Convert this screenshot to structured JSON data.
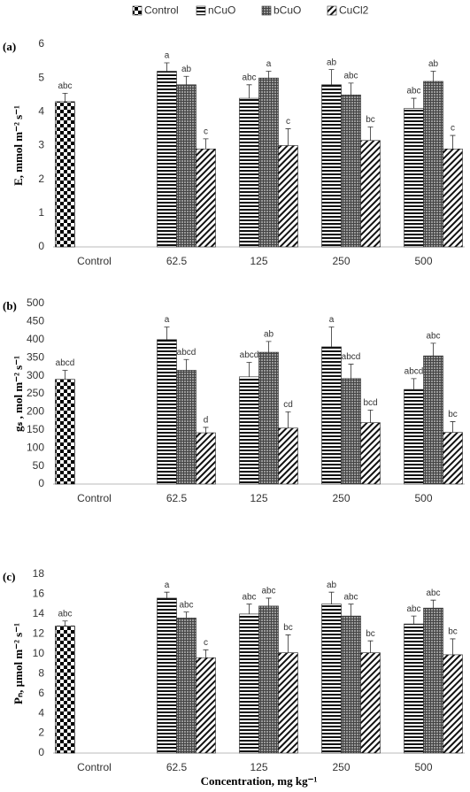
{
  "chart_data": [
    {
      "type": "bar",
      "panel": "(a)",
      "ylabel": "E, mmol m⁻² s⁻¹",
      "categories": [
        "Control",
        "62.5",
        "125",
        "250",
        "500"
      ],
      "ylim": [
        0,
        6
      ],
      "yticks": [
        0,
        1,
        2,
        3,
        4,
        5,
        6
      ],
      "series": [
        {
          "name": "Control",
          "pattern": "checker",
          "values": [
            4.3,
            null,
            null,
            null,
            null
          ],
          "errors": [
            0.25,
            null,
            null,
            null,
            null
          ],
          "labels": [
            "abc",
            null,
            null,
            null,
            null
          ]
        },
        {
          "name": "nCuO",
          "pattern": "horizontal",
          "values": [
            null,
            5.2,
            4.4,
            4.8,
            4.1
          ],
          "errors": [
            null,
            0.25,
            0.4,
            0.45,
            0.3
          ],
          "labels": [
            null,
            "a",
            "abc",
            "ab",
            "abc"
          ]
        },
        {
          "name": "bCuO",
          "pattern": "grid",
          "values": [
            null,
            4.8,
            5.0,
            4.5,
            4.9
          ],
          "errors": [
            null,
            0.25,
            0.2,
            0.35,
            0.3
          ],
          "labels": [
            null,
            "ab",
            "a",
            "abc",
            "ab"
          ]
        },
        {
          "name": "CuCl2",
          "pattern": "diagonal",
          "values": [
            null,
            2.9,
            3.0,
            3.15,
            2.9
          ],
          "errors": [
            null,
            0.3,
            0.5,
            0.4,
            0.4
          ],
          "labels": [
            null,
            "c",
            "c",
            "bc",
            "c"
          ]
        }
      ]
    },
    {
      "type": "bar",
      "panel": "(b)",
      "ylabel": "gₛ , mol m⁻² s⁻¹",
      "categories": [
        "Control",
        "62.5",
        "125",
        "250",
        "500"
      ],
      "ylim": [
        0,
        500
      ],
      "yticks": [
        0,
        50,
        100,
        150,
        200,
        250,
        300,
        350,
        400,
        450,
        500
      ],
      "series": [
        {
          "values": [
            290,
            null,
            null,
            null,
            null
          ],
          "errors": [
            25,
            null,
            null,
            null,
            null
          ],
          "labels": [
            "abcd",
            null,
            null,
            null,
            null
          ]
        },
        {
          "values": [
            null,
            400,
            297,
            380,
            262
          ],
          "errors": [
            null,
            35,
            40,
            55,
            30
          ],
          "labels": [
            null,
            "a",
            "abcd",
            "a",
            "abcd"
          ]
        },
        {
          "values": [
            null,
            315,
            365,
            292,
            355
          ],
          "errors": [
            null,
            30,
            30,
            40,
            35
          ],
          "labels": [
            null,
            "abcd",
            "ab",
            "abcd",
            "abc"
          ]
        },
        {
          "values": [
            null,
            142,
            155,
            170,
            143
          ],
          "errors": [
            null,
            15,
            45,
            35,
            30
          ],
          "labels": [
            null,
            "d",
            "cd",
            "bcd",
            "bc"
          ]
        }
      ]
    },
    {
      "type": "bar",
      "panel": "(c)",
      "ylabel": "Pₙ, µmol m⁻² s⁻¹",
      "xlabel": "Concentration, mg kg⁻¹",
      "categories": [
        "Control",
        "62.5",
        "125",
        "250",
        "500"
      ],
      "ylim": [
        0,
        18
      ],
      "yticks": [
        0,
        2,
        4,
        6,
        8,
        10,
        12,
        14,
        16,
        18
      ],
      "series": [
        {
          "values": [
            12.8,
            null,
            null,
            null,
            null
          ],
          "errors": [
            0.5,
            null,
            null,
            null,
            null
          ],
          "labels": [
            "abc",
            null,
            null,
            null,
            null
          ]
        },
        {
          "values": [
            null,
            15.6,
            14.0,
            15.0,
            13.0
          ],
          "errors": [
            null,
            0.6,
            1.0,
            1.2,
            0.8
          ],
          "labels": [
            null,
            "a",
            "abc",
            "ab",
            "abc"
          ]
        },
        {
          "values": [
            null,
            13.6,
            14.8,
            13.8,
            14.6
          ],
          "errors": [
            null,
            0.6,
            0.8,
            1.2,
            0.8
          ],
          "labels": [
            null,
            "abc",
            "abc",
            "abc",
            "abc"
          ]
        },
        {
          "values": [
            null,
            9.6,
            10.1,
            10.1,
            9.9
          ],
          "errors": [
            null,
            0.8,
            1.8,
            1.2,
            1.6
          ],
          "labels": [
            null,
            "c",
            "bc",
            "bc",
            "bc"
          ]
        }
      ]
    }
  ]
}
